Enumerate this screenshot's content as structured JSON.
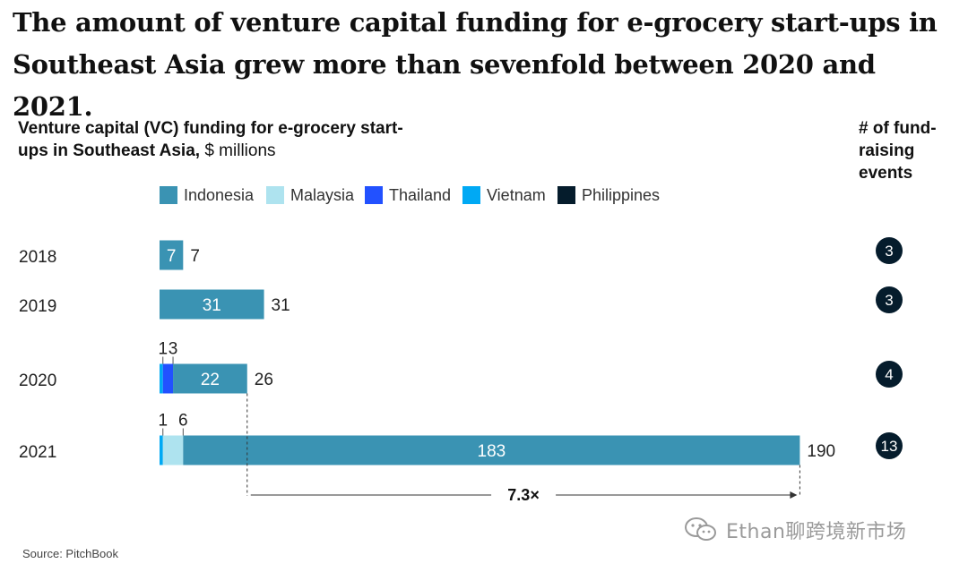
{
  "title": "The amount of venture capital funding for e-grocery start-ups in Southeast Asia grew more than sevenfold between 2020 and 2021.",
  "subtitle_bold": "Venture capital (VC) funding for e-grocery start-ups in Southeast Asia,",
  "subtitle_unit": " $ millions",
  "events_header": "# of fund-raising events",
  "source": "Source: PitchBook",
  "watermark": "Ethan聊跨境新市场",
  "multiplier_label": "7.3×",
  "colors": {
    "Indonesia": "#3a93b3",
    "Malaysia": "#aee3ef",
    "Thailand": "#2251ff",
    "Vietnam": "#00a9f4",
    "Philippines": "#051c2c"
  },
  "chart_data": {
    "type": "bar",
    "orientation": "horizontal",
    "stacked": true,
    "title": "Venture capital (VC) funding for e-grocery start-ups in Southeast Asia, $ millions",
    "legend": [
      "Indonesia",
      "Malaysia",
      "Thailand",
      "Vietnam",
      "Philippines"
    ],
    "legend_position": "top",
    "categories": [
      "2018",
      "2019",
      "2020",
      "2021"
    ],
    "series": [
      {
        "name": "Vietnam",
        "values": [
          0,
          0,
          1,
          1
        ]
      },
      {
        "name": "Thailand",
        "values": [
          0,
          0,
          3,
          0
        ]
      },
      {
        "name": "Malaysia",
        "values": [
          0,
          0,
          0,
          6
        ]
      },
      {
        "name": "Indonesia",
        "values": [
          7,
          31,
          22,
          183
        ]
      },
      {
        "name": "Philippines",
        "values": [
          0,
          0,
          0,
          0
        ]
      }
    ],
    "totals": [
      7,
      31,
      26,
      190
    ],
    "fundraising_events": [
      3,
      3,
      4,
      13
    ],
    "small_segment_labels": [
      {
        "category": "2020",
        "labels": [
          "1",
          "3"
        ]
      },
      {
        "category": "2021",
        "labels": [
          "1",
          "6"
        ]
      }
    ],
    "xlim": [
      0,
      190
    ],
    "grid": false
  }
}
